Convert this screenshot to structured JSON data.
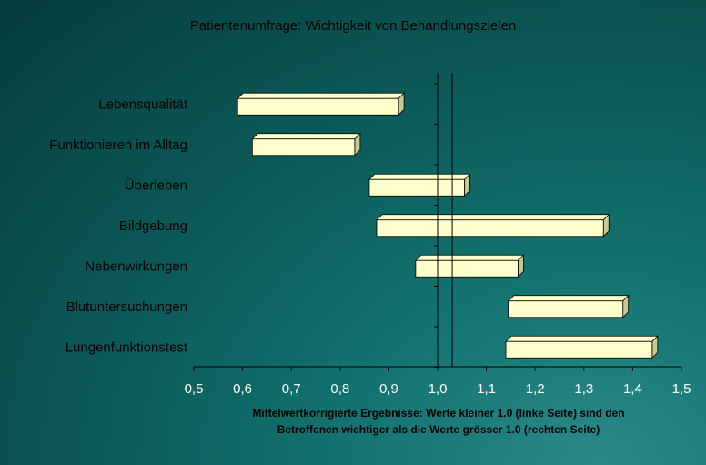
{
  "chart_data": {
    "type": "bar",
    "orientation": "horizontal-floating",
    "title": "Patientenumfrage: Wichtigkeit von Behandlungszielen",
    "categories": [
      "Lebensqualität",
      "Funktionieren im Alltag",
      "Überleben",
      "Bildgebung",
      "Nebenwirkungen",
      "Blutuntersuchungen",
      "Lungenfunktionstest"
    ],
    "ranges": [
      [
        0.59,
        0.92
      ],
      [
        0.62,
        0.83
      ],
      [
        0.86,
        1.055
      ],
      [
        0.875,
        1.34
      ],
      [
        0.955,
        1.165
      ],
      [
        1.145,
        1.38
      ],
      [
        1.14,
        1.44
      ]
    ],
    "xlim": [
      0.5,
      1.5
    ],
    "x_ticks": [
      "0,5",
      "0,6",
      "0,7",
      "0,8",
      "0,9",
      "1,0",
      "1,1",
      "1,2",
      "1,3",
      "1,4",
      "1,5"
    ],
    "reference_lines": [
      1.0,
      1.03
    ],
    "annotation": [
      "Mittelwertkorrigierte Ergebnisse: Werte kleiner 1.0 (linke Seite) sind den",
      "Betroffenen wichtiger als die Werte grösser 1.0 (rechten Seite)"
    ],
    "bar_color": "#ffffcc",
    "bar_side_color": "#c8c890",
    "axis_color": "#000000"
  }
}
